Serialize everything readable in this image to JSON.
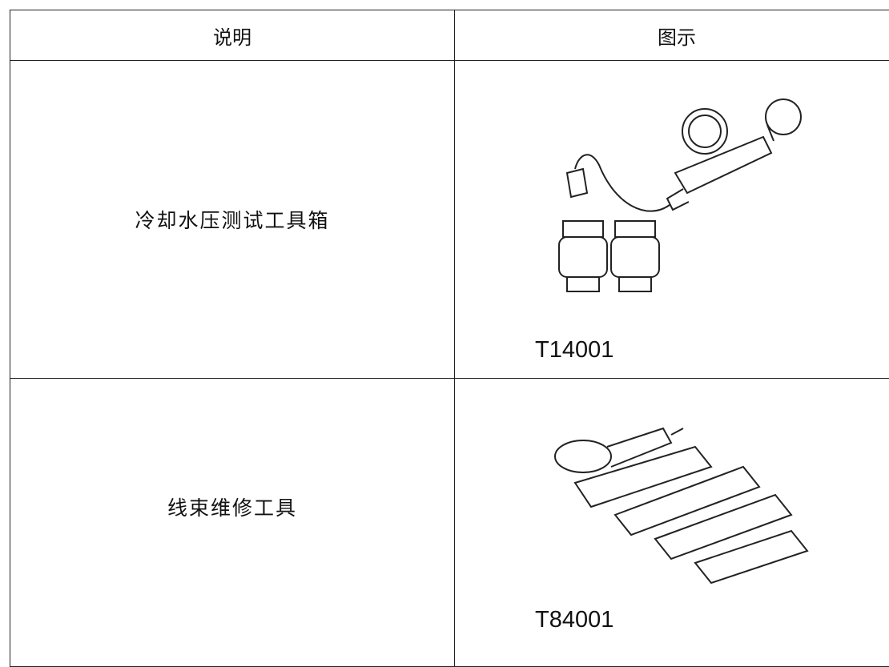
{
  "table": {
    "header": [
      "说明",
      "图示"
    ],
    "rows": [
      {
        "description": "冷却水压测试工具箱",
        "code": "T14001"
      },
      {
        "description": "线束维修工具",
        "code": "T84001"
      }
    ]
  }
}
